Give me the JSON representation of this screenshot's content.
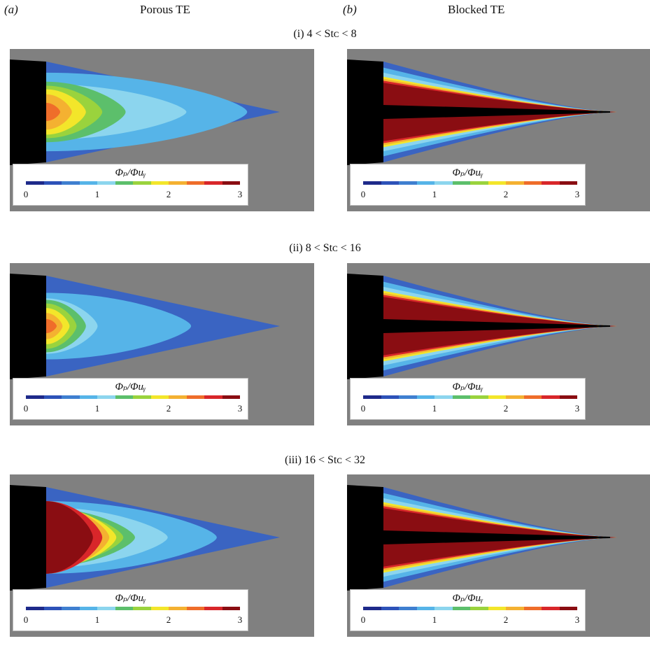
{
  "headers": {
    "col_a_letter": "(a)",
    "col_a_title": "Porous TE",
    "col_b_letter": "(b)",
    "col_b_title": "Blocked TE"
  },
  "rows": [
    {
      "label": "(i) 4 < Stᴄ < 8"
    },
    {
      "label": "(ii) 8 < Stᴄ < 16"
    },
    {
      "label": "(iii) 16 < Stᴄ < 32"
    }
  ],
  "legend": {
    "title": "Φₚ/Φuᵧ",
    "ticks": [
      "0",
      "1",
      "2",
      "3"
    ],
    "colors": [
      "#1e2a8a",
      "#2d52b8",
      "#3f7fd0",
      "#56b4e8",
      "#8cd5ee",
      "#5cbf6b",
      "#9ad33d",
      "#f3e62a",
      "#f4b131",
      "#ef6d2a",
      "#d8262a",
      "#8a0d12"
    ]
  },
  "colors": {
    "background": "#808080",
    "body": "#000000"
  }
}
